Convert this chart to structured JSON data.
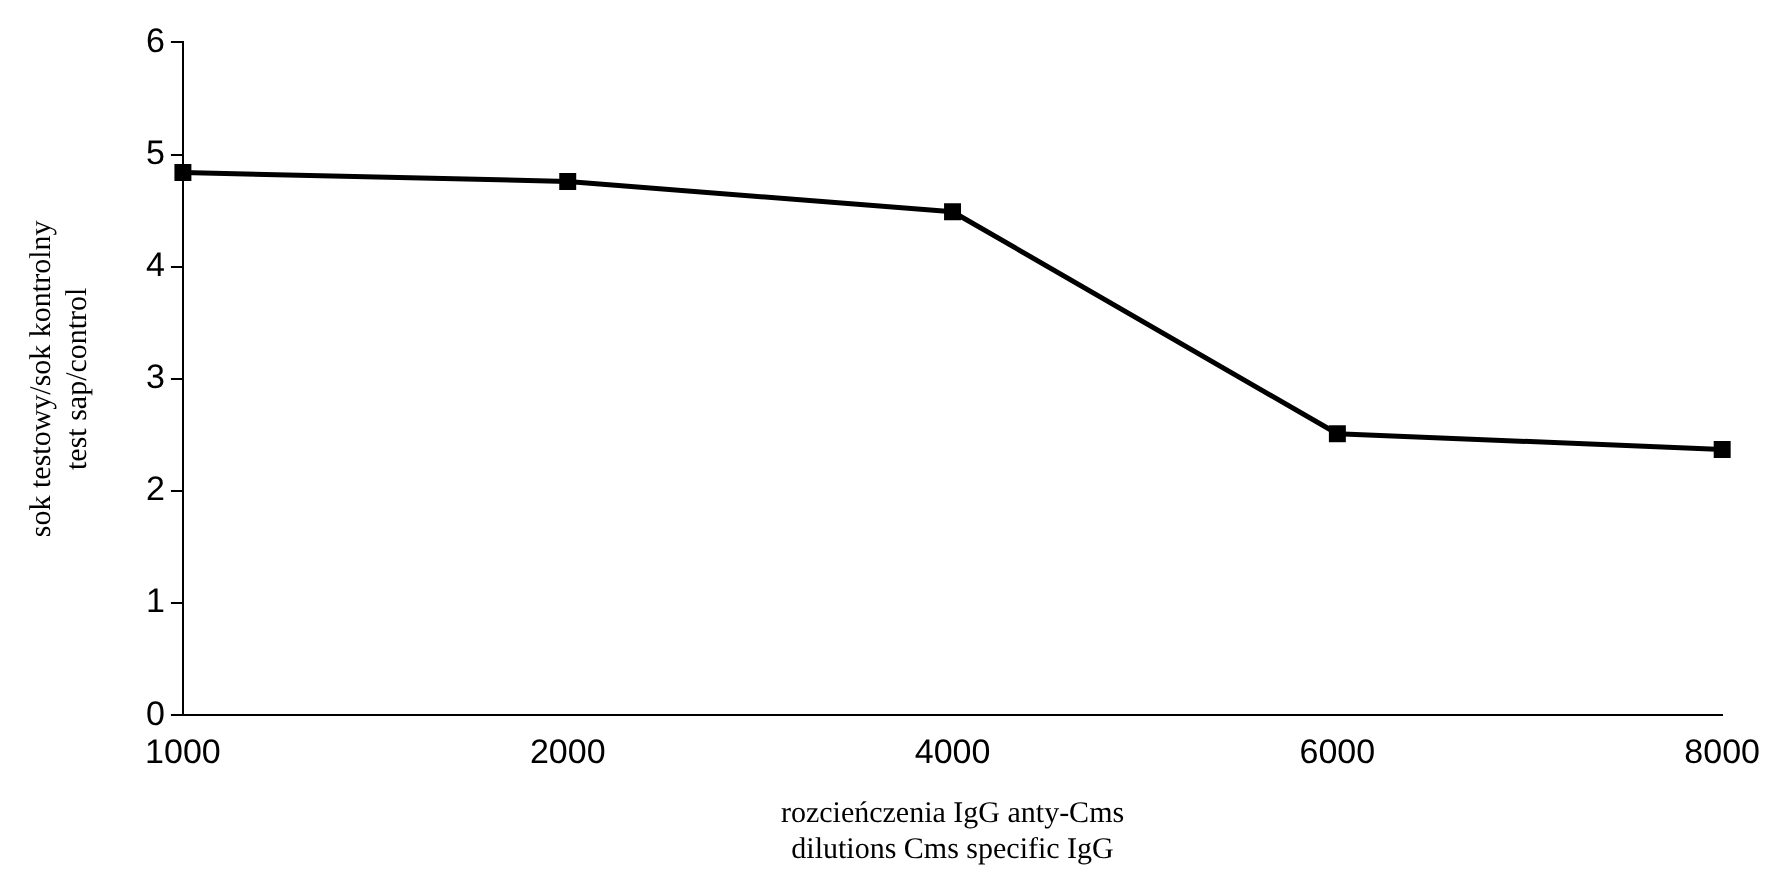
{
  "chart_data": {
    "type": "line",
    "xlabel": "rozcieńczenia IgG anty-Cms\ndilutions Cms specific IgG",
    "ylabel": "sok testowy/sok kontrolny\ntest sap/control",
    "categories": [
      "1000",
      "2000",
      "4000",
      "6000",
      "8000"
    ],
    "series": [
      {
        "color": "#000000",
        "values": [
          4.84,
          4.76,
          4.49,
          2.51,
          2.37
        ]
      }
    ],
    "ylim": [
      0,
      6
    ],
    "yticks": [
      0,
      1,
      2,
      3,
      4,
      5,
      6
    ],
    "grid": false,
    "legend": false,
    "marker": "square",
    "line_style": "solid"
  }
}
